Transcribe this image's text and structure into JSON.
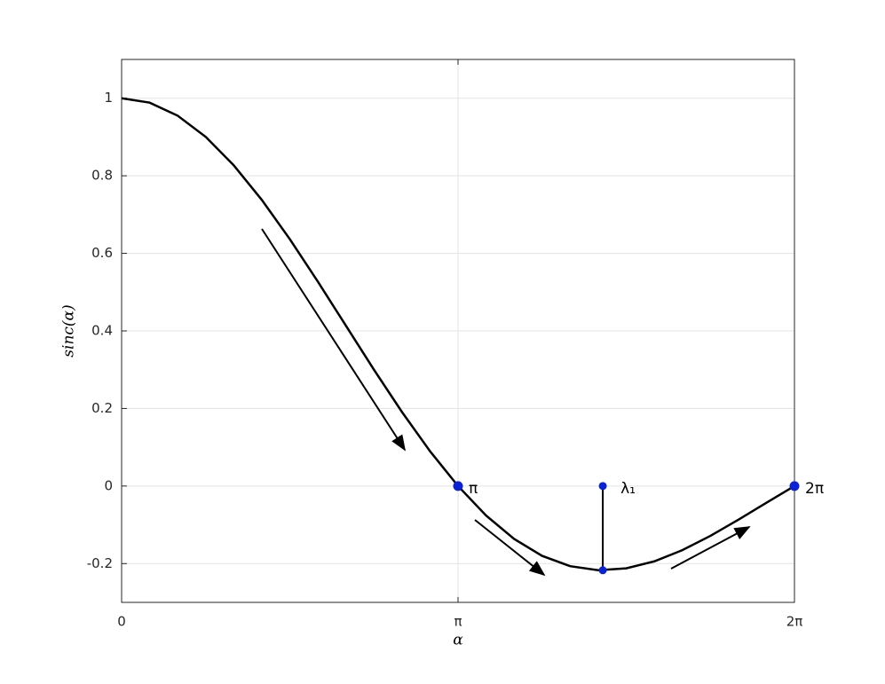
{
  "chart_data": {
    "type": "line",
    "x_label": "α",
    "y_label": "sinc(α)",
    "xlim": [
      0,
      6.2832
    ],
    "ylim": [
      -0.3,
      1.1
    ],
    "xticks": [
      0,
      {
        "value": 3.1416,
        "label": "π"
      },
      {
        "value": 6.2832,
        "label": "2π"
      }
    ],
    "yticks": [
      -0.2,
      0,
      0.2,
      0.4,
      0.6,
      0.8,
      1
    ],
    "grid": true,
    "series": [
      {
        "color": "#000000",
        "x": [
          0,
          0.2618,
          0.5236,
          0.7854,
          1.0472,
          1.309,
          1.5708,
          1.8326,
          2.0944,
          2.3562,
          2.618,
          2.8798,
          3.1416,
          3.4034,
          3.6652,
          3.927,
          4.1888,
          4.4506,
          4.7124,
          4.9742,
          5.236,
          5.4978,
          5.7596,
          6.0214,
          6.2832
        ],
        "values": [
          1,
          0.9886,
          0.9549,
          0.9003,
          0.827,
          0.7379,
          0.6366,
          0.5271,
          0.4135,
          0.3001,
          0.191,
          0.0899,
          0,
          -0.076,
          -0.1364,
          -0.1801,
          -0.2067,
          -0.217,
          -0.2122,
          -0.1942,
          -0.1654,
          -0.1286,
          -0.0868,
          -0.043,
          0
        ]
      }
    ],
    "markers": {
      "color": "#0a22d6",
      "points": [
        {
          "x": 3.1416,
          "y": 0,
          "label": "π"
        },
        {
          "x": 6.2832,
          "y": 0,
          "label": "2π"
        },
        {
          "x": 4.4934,
          "y": 0,
          "label": "λ₁"
        },
        {
          "x": 4.4934,
          "y": -0.2172
        }
      ]
    }
  }
}
